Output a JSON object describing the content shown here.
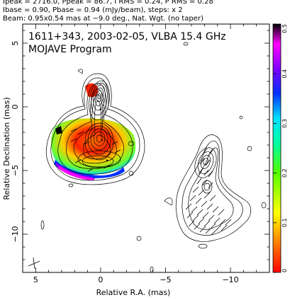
{
  "header": {
    "line1": "Ipeak = 2716.0, Ppeak = 86.7, I RMS = 0.24, P RMS = 0.28",
    "line2": "Ibase = 0.90, Pbase = 0.94 (mJy/beam), steps: x 2",
    "line3": "Beam: 0.95x0.54 mas at −9.0 deg., Nat. Wgt. (no taper)"
  },
  "chart_data": [
    {
      "type": "heatmap",
      "title": "1611+343, 2003-02-05, VLBA 15.4 GHz",
      "subtitle": "MOJAVE Program",
      "xlabel": "Relative R.A. (mas)",
      "ylabel": "Relative Declination (mas)",
      "xlim": [
        6,
        -13
      ],
      "ylim": [
        -13,
        6.5
      ],
      "x_ticks": [
        5,
        0,
        -5,
        -10
      ],
      "x_tick_labels": [
        "5",
        "0",
        "−5",
        "−10"
      ],
      "y_ticks": [
        5,
        0,
        -5,
        -10
      ],
      "y_tick_labels": [
        "5",
        "0",
        "−5",
        "−10"
      ],
      "colorbar": {
        "range": [
          0,
          0.5
        ],
        "ticks": [
          0,
          0.1,
          0.2,
          0.3,
          0.4,
          0.5
        ],
        "tick_labels": [
          "0",
          "0.1",
          "0.2",
          "0.3",
          "0.4",
          "0.5"
        ]
      },
      "components": [
        {
          "x": 0.0,
          "y": -0.2
        },
        {
          "x": -0.1,
          "y": -2.6
        },
        {
          "x": -0.5,
          "y": -4.2
        }
      ],
      "colors": {
        "contour": "#000000",
        "background": "#ffffff"
      }
    }
  ]
}
